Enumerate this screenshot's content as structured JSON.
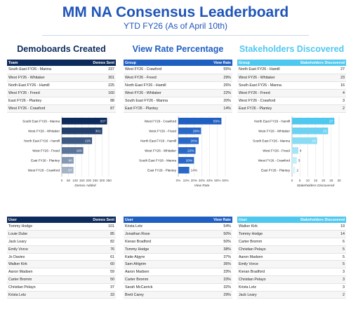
{
  "header": {
    "title": "MM NA Consensus Leaderboard",
    "subtitle": "YTD FY26 (As of April 10th)"
  },
  "sections": [
    {
      "title": "Demoboards Created",
      "accent": "#0d2a5c",
      "title_color": "#0d2a5c",
      "table": {
        "columns": [
          "Team",
          "Demos Sent"
        ],
        "rows": [
          [
            "South East FY26 - Manna",
            "337"
          ],
          [
            "West FY26 - Whitaker",
            "301"
          ],
          [
            "North East FY26 - Hamill",
            "225"
          ],
          [
            "West FY26 - Freed",
            "160"
          ],
          [
            "East FY26 - Plantey",
            "88"
          ],
          [
            "West FY26 - Crawford",
            "87"
          ]
        ]
      },
      "chart": {
        "categories": [
          "South East FY26 - Manna",
          "West FY26 - Whitaker",
          "North East FY26 - Hamill",
          "West FY26 - Freed",
          "East FY26 - Plantey",
          "West FY26 - Crawford"
        ],
        "values": [
          337,
          301,
          225,
          160,
          88,
          87
        ],
        "value_labels": [
          "337",
          "301",
          "225",
          "160",
          "88",
          "87"
        ],
        "colors": [
          "#0d2a5c",
          "#22406e",
          "#3d5a85",
          "#5b7499",
          "#8497b3",
          "#a5b3c7"
        ],
        "xlim": [
          0,
          350
        ],
        "ticks": [
          0,
          50,
          100,
          150,
          200,
          250,
          300,
          350
        ],
        "tick_labels": [
          "0",
          "50",
          "100",
          "150",
          "200",
          "250",
          "300",
          "350"
        ],
        "xlabel": "Demos Added"
      },
      "users": {
        "columns": [
          "User",
          "Demos Sent"
        ],
        "rows": [
          [
            "Tommy Hodge",
            "101"
          ],
          [
            "Louie Dube",
            "85"
          ],
          [
            "Jack Leary",
            "82"
          ],
          [
            "Emily Vorce",
            "76"
          ],
          [
            "Jo Davies",
            "61"
          ],
          [
            "Walker Kirk",
            "60"
          ],
          [
            "Aaron Madsen",
            "59"
          ],
          [
            "Carter Bromm",
            "50"
          ],
          [
            "Christian Pelayo",
            "37"
          ],
          [
            "Krista Letz",
            "33"
          ]
        ]
      }
    },
    {
      "title": "View Rate Percentage",
      "accent": "#1f5fc2",
      "title_color": "#1f5fc2",
      "table": {
        "columns": [
          "Group",
          "View Rate"
        ],
        "rows": [
          [
            "West FY26 - Crawford",
            "55%"
          ],
          [
            "West FY26 - Freed",
            "29%"
          ],
          [
            "North East FY26 - Hamill",
            "26%"
          ],
          [
            "West FY26 - Whitaker",
            "22%"
          ],
          [
            "South East FY26 - Manna",
            "20%"
          ],
          [
            "East FY26 - Plantey",
            "14%"
          ]
        ]
      },
      "chart": {
        "categories": [
          "West FY26 - Crawford",
          "West FY26 - Freed",
          "North East FY26 - Hamill",
          "West FY26 - Whitaker",
          "South East FY26 - Manna",
          "East FY26 - Plantey"
        ],
        "values": [
          55,
          29,
          26,
          22,
          20,
          14
        ],
        "value_labels": [
          "55%",
          "29%",
          "26%",
          "22%",
          "20%",
          "14%"
        ],
        "colors": [
          "#1f5fc2",
          "#2a68c8",
          "#2a68c8",
          "#2a68c8",
          "#2a68c8",
          "#2a68c8"
        ],
        "xlim": [
          0,
          60
        ],
        "ticks": [
          0,
          10,
          20,
          30,
          40,
          50,
          60
        ],
        "tick_labels": [
          "0%",
          "10%",
          "20%",
          "30%",
          "40%",
          "50%",
          "60%"
        ],
        "xlabel": "View Rate"
      },
      "users": {
        "columns": [
          "User",
          "View Rate"
        ],
        "rows": [
          [
            "Krista Letz",
            "54%"
          ],
          [
            "Jonathan Rose",
            "50%"
          ],
          [
            "Kieran Bradford",
            "50%"
          ],
          [
            "Tommy Hodge",
            "38%"
          ],
          [
            "Katie Algyre",
            "37%"
          ],
          [
            "Sam Ahlgrim",
            "36%"
          ],
          [
            "Aaron Madsen",
            "33%"
          ],
          [
            "Carter Bromm",
            "33%"
          ],
          [
            "Sarah McCarrick",
            "32%"
          ],
          [
            "Brett Carey",
            "29%"
          ]
        ]
      }
    },
    {
      "title": "Stakeholders Discovered",
      "accent": "#4fc8ef",
      "title_color": "#4fc8ef",
      "table": {
        "columns": [
          "Group",
          "Stakeholders Discovered"
        ],
        "rows": [
          [
            "North East FY26 - Hamill",
            "27"
          ],
          [
            "West FY26 - Whitaker",
            "23"
          ],
          [
            "South East FY26 - Manna",
            "16"
          ],
          [
            "West FY26 - Freed",
            "4"
          ],
          [
            "West FY26 - Crawford",
            "3"
          ],
          [
            "East FY26 - Plantey",
            "2"
          ]
        ]
      },
      "chart": {
        "categories": [
          "North East FY26 - Hamill",
          "West FY26 - Whitaker",
          "South East FY26 - Manna",
          "West FY26 - Freed",
          "West FY26 - Crawford",
          "East FY26 - Plantey"
        ],
        "values": [
          27,
          23,
          16,
          4,
          3,
          2
        ],
        "value_labels": [
          "27",
          "23",
          "16",
          "4",
          "3",
          "2"
        ],
        "colors": [
          "#4fc8ef",
          "#6dd2f2",
          "#8adcf5",
          "#a6e5f8",
          "#c2eefb",
          "#daf5fc"
        ],
        "xlim": [
          0,
          30
        ],
        "ticks": [
          0,
          5,
          10,
          15,
          20,
          25,
          30
        ],
        "tick_labels": [
          "0",
          "5",
          "10",
          "15",
          "20",
          "25",
          "30"
        ],
        "xlabel": "Stakeholders Discovered"
      },
      "users": {
        "columns": [
          "User",
          "Stakeholders Discovered"
        ],
        "rows": [
          [
            "Walker Kirk",
            "19"
          ],
          [
            "Tommy Hodge",
            "14"
          ],
          [
            "Carter Bromm",
            "6"
          ],
          [
            "Christian Pelayo",
            "5"
          ],
          [
            "Aaron Madsen",
            "5"
          ],
          [
            "Emily Vorce",
            "5"
          ],
          [
            "Kieran Bradford",
            "3"
          ],
          [
            "Christian Pelayo",
            "3"
          ],
          [
            "Krista Letz",
            "3"
          ],
          [
            "Jack Leary",
            "2"
          ]
        ]
      }
    }
  ],
  "chart_data": [
    {
      "type": "bar",
      "title": "Demoboards Created",
      "orientation": "horizontal",
      "categories": [
        "South East FY26 - Manna",
        "West FY26 - Whitaker",
        "North East FY26 - Hamill",
        "West FY26 - Freed",
        "East FY26 - Plantey",
        "West FY26 - Crawford"
      ],
      "values": [
        337,
        301,
        225,
        160,
        88,
        87
      ],
      "xlabel": "Demos Added",
      "xlim": [
        0,
        350
      ],
      "grid": true
    },
    {
      "type": "bar",
      "title": "View Rate Percentage",
      "orientation": "horizontal",
      "categories": [
        "West FY26 - Crawford",
        "West FY26 - Freed",
        "North East FY26 - Hamill",
        "West FY26 - Whitaker",
        "South East FY26 - Manna",
        "East FY26 - Plantey"
      ],
      "values": [
        55,
        29,
        26,
        22,
        20,
        14
      ],
      "xlabel": "View Rate",
      "xlim": [
        0,
        60
      ],
      "grid": true
    },
    {
      "type": "bar",
      "title": "Stakeholders Discovered",
      "orientation": "horizontal",
      "categories": [
        "North East FY26 - Hamill",
        "West FY26 - Whitaker",
        "South East FY26 - Manna",
        "West FY26 - Freed",
        "West FY26 - Crawford",
        "East FY26 - Plantey"
      ],
      "values": [
        27,
        23,
        16,
        4,
        3,
        2
      ],
      "xlabel": "Stakeholders Discovered",
      "xlim": [
        0,
        30
      ],
      "grid": true
    }
  ]
}
